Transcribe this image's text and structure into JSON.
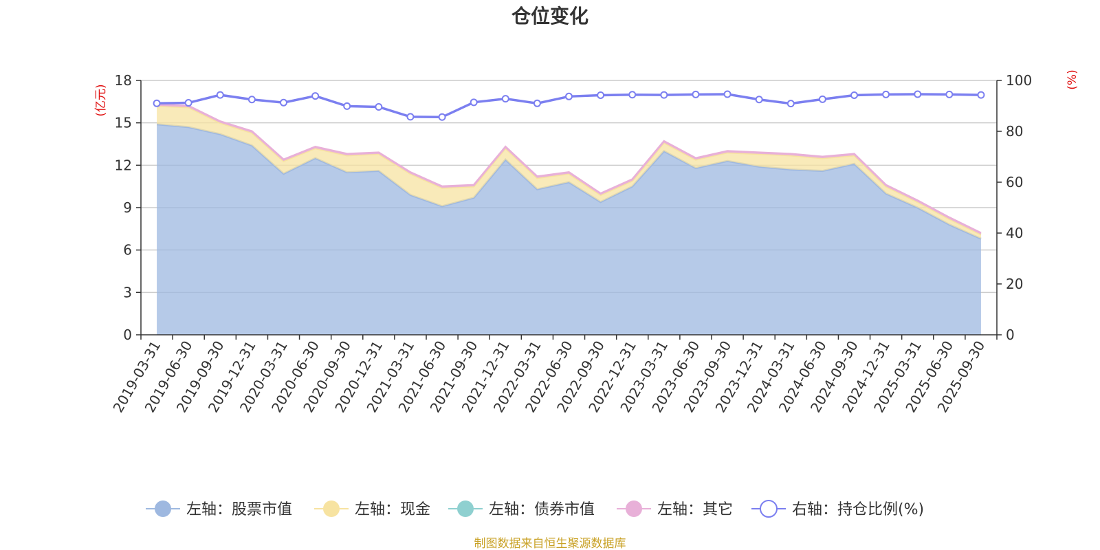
{
  "chart_data": {
    "type": "area",
    "title": "仓位变化",
    "left_axis_unit": "(亿元)",
    "right_axis_unit": "(%)",
    "left_ylim": [
      0,
      18
    ],
    "left_ticks": [
      0,
      3,
      6,
      9,
      12,
      15,
      18
    ],
    "right_ylim": [
      0,
      100
    ],
    "right_ticks": [
      0,
      20,
      40,
      60,
      80,
      100
    ],
    "grid": true,
    "legend_position": "bottom",
    "x": [
      "2019-03-31",
      "2019-06-30",
      "2019-09-30",
      "2019-12-31",
      "2020-03-31",
      "2020-06-30",
      "2020-09-30",
      "2020-12-31",
      "2021-03-31",
      "2021-06-30",
      "2021-09-30",
      "2021-12-31",
      "2022-03-31",
      "2022-06-30",
      "2022-09-30",
      "2022-12-31",
      "2023-03-31",
      "2023-06-30",
      "2023-09-30",
      "2023-12-31",
      "2024-03-31",
      "2024-06-30",
      "2024-09-30",
      "2024-12-31",
      "2025-03-31",
      "2025-06-30",
      "2025-09-30"
    ],
    "series": [
      {
        "name": "左轴：股票市值",
        "axis": "left",
        "stacked": true,
        "color": "#9eb8e0",
        "values": [
          14.9,
          14.7,
          14.2,
          13.4,
          11.4,
          12.5,
          11.5,
          11.6,
          9.9,
          9.1,
          9.7,
          12.4,
          10.3,
          10.8,
          9.4,
          10.5,
          13.0,
          11.8,
          12.3,
          11.9,
          11.7,
          11.6,
          12.1,
          10.0,
          9.0,
          7.8,
          6.8
        ]
      },
      {
        "name": "左轴：现金",
        "axis": "left",
        "stacked": true,
        "color": "#f7e3a1",
        "values": [
          1.3,
          1.4,
          0.8,
          0.9,
          0.9,
          0.7,
          1.2,
          1.2,
          1.5,
          1.3,
          0.8,
          0.8,
          0.8,
          0.6,
          0.5,
          0.4,
          0.6,
          0.6,
          0.6,
          0.9,
          1.0,
          0.9,
          0.6,
          0.5,
          0.4,
          0.4,
          0.3
        ]
      },
      {
        "name": "左轴：债券市值",
        "axis": "left",
        "stacked": true,
        "color": "#8fd0d0",
        "values": [
          0,
          0,
          0,
          0,
          0,
          0,
          0,
          0,
          0,
          0,
          0,
          0,
          0,
          0,
          0,
          0,
          0,
          0,
          0,
          0,
          0,
          0,
          0,
          0,
          0,
          0,
          0
        ]
      },
      {
        "name": "左轴：其它",
        "axis": "left",
        "stacked": true,
        "color": "#e8b0d8",
        "values": [
          0.1,
          0.1,
          0.1,
          0.1,
          0.1,
          0.1,
          0.1,
          0.1,
          0.1,
          0.1,
          0.1,
          0.1,
          0.1,
          0.1,
          0.1,
          0.1,
          0.1,
          0.1,
          0.1,
          0.1,
          0.1,
          0.1,
          0.1,
          0.1,
          0.1,
          0.1,
          0.1
        ]
      },
      {
        "name": "右轴：持仓比例(%)",
        "axis": "right",
        "type": "line",
        "color": "#7b7ff0",
        "values": [
          91.0,
          91.2,
          94.3,
          92.5,
          91.3,
          93.9,
          89.9,
          89.6,
          85.7,
          85.6,
          91.4,
          92.8,
          91.0,
          93.7,
          94.2,
          94.4,
          94.3,
          94.5,
          94.6,
          92.5,
          90.9,
          92.6,
          94.2,
          94.5,
          94.6,
          94.5,
          94.3
        ]
      }
    ],
    "source_note": "制图数据来自恒生聚源数据库"
  }
}
